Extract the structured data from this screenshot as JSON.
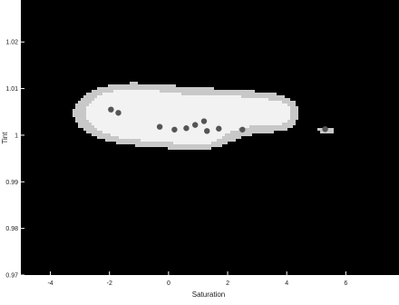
{
  "chart_data": {
    "type": "heatmap",
    "title": "",
    "xlabel": "Saturation",
    "ylabel": "Tint",
    "xlim": [
      -5.0,
      7.8
    ],
    "ylim": [
      0.97,
      1.029
    ],
    "x_ticks": [
      -4,
      -2,
      0,
      2,
      4,
      6
    ],
    "x_tick_labels": [
      "-4",
      "-2",
      "0",
      "2",
      "4",
      "6"
    ],
    "y_ticks": [
      0.97,
      0.98,
      0.99,
      1.0,
      1.01,
      1.02
    ],
    "y_tick_labels": [
      "0.97",
      "0.98",
      "0.99",
      "1",
      "1.01",
      "1.02"
    ],
    "grid": false,
    "background_color": "#000000",
    "density_colors": {
      "low": "#c8c8c8",
      "mid": "#f2f2f2",
      "high": "#555555"
    },
    "blobs": [
      {
        "x": 0.2,
        "y": 1.0043,
        "sx": 1.9,
        "sy": 0.0042,
        "w": 1.0
      },
      {
        "x": -1.6,
        "y": 1.0055,
        "sx": 0.9,
        "sy": 0.0034,
        "w": 0.75
      },
      {
        "x": 2.9,
        "y": 1.0058,
        "sx": 0.9,
        "sy": 0.0026,
        "w": 0.5
      },
      {
        "x": 3.8,
        "y": 1.0045,
        "sx": 0.4,
        "sy": 0.0026,
        "w": 0.3
      },
      {
        "x": 0.9,
        "y": 0.9995,
        "sx": 0.6,
        "sy": 0.0016,
        "w": 0.35
      },
      {
        "x": 5.3,
        "y": 1.0013,
        "sx": 0.25,
        "sy": 0.0007,
        "w": 0.55
      },
      {
        "x": -1.0,
        "y": 1.002,
        "sx": 0.5,
        "sy": 0.0015,
        "w": 0.25
      }
    ],
    "dense_spots": [
      {
        "x": -1.95,
        "y": 1.0055
      },
      {
        "x": -1.7,
        "y": 1.0048
      },
      {
        "x": -0.3,
        "y": 1.0018
      },
      {
        "x": 0.2,
        "y": 1.0012
      },
      {
        "x": 0.6,
        "y": 1.0015
      },
      {
        "x": 0.9,
        "y": 1.0022
      },
      {
        "x": 1.3,
        "y": 1.0009
      },
      {
        "x": 1.7,
        "y": 1.0014
      },
      {
        "x": 1.2,
        "y": 1.003
      },
      {
        "x": 2.5,
        "y": 1.0012
      },
      {
        "x": 5.3,
        "y": 1.0013
      }
    ]
  }
}
